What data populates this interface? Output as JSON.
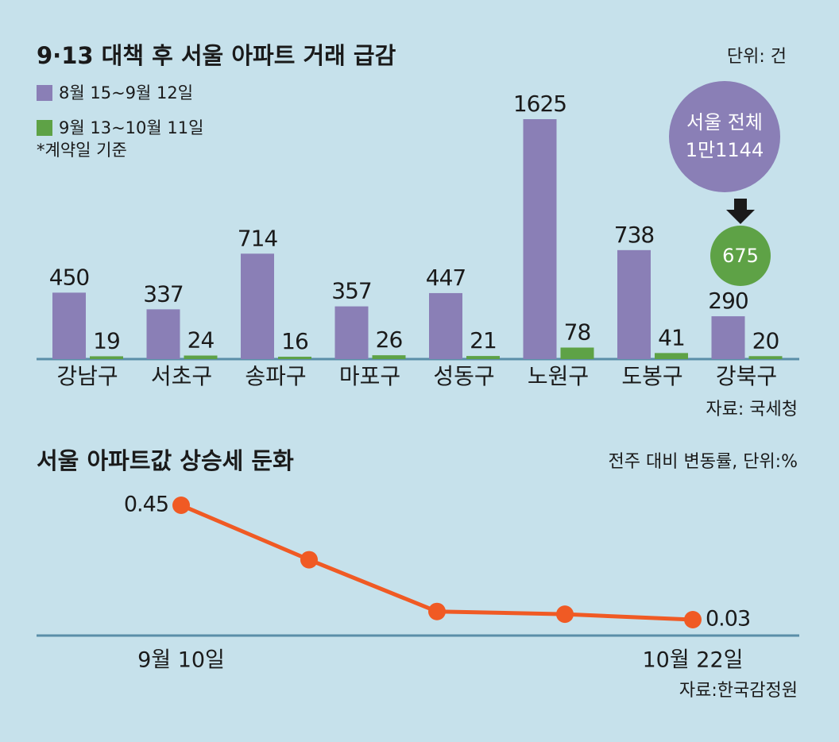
{
  "chart_data": [
    {
      "type": "bar",
      "title": "9·13 대책 후 서울 아파트 거래 급감",
      "unit": "단위: 건",
      "note": "*계약일 기준",
      "source": "자료: 국세청",
      "categories": [
        "강남구",
        "서초구",
        "송파구",
        "마포구",
        "성동구",
        "노원구",
        "도봉구",
        "강북구"
      ],
      "series": [
        {
          "name": "8월 15~9월 12일",
          "color": "#8a7fb6",
          "values": [
            450,
            337,
            714,
            357,
            447,
            1625,
            738,
            290
          ]
        },
        {
          "name": "9월 13~10월 11일",
          "color": "#5ea246",
          "values": [
            19,
            24,
            16,
            26,
            21,
            78,
            41,
            20
          ]
        }
      ],
      "annotation": {
        "label": "서울 전체",
        "values": [
          11144,
          675
        ],
        "value_labels": [
          "1만1144",
          "675"
        ]
      }
    },
    {
      "type": "line",
      "title": "서울 아파트값 상승세 둔화",
      "unit": "전주 대비 변동률, 단위:%",
      "source": "자료:한국감정원",
      "categories": [
        "9월 10일",
        null,
        null,
        null,
        "10월 22일"
      ],
      "values": [
        0.45,
        0.25,
        0.06,
        0.05,
        0.03
      ],
      "color": "#f05a24"
    }
  ]
}
